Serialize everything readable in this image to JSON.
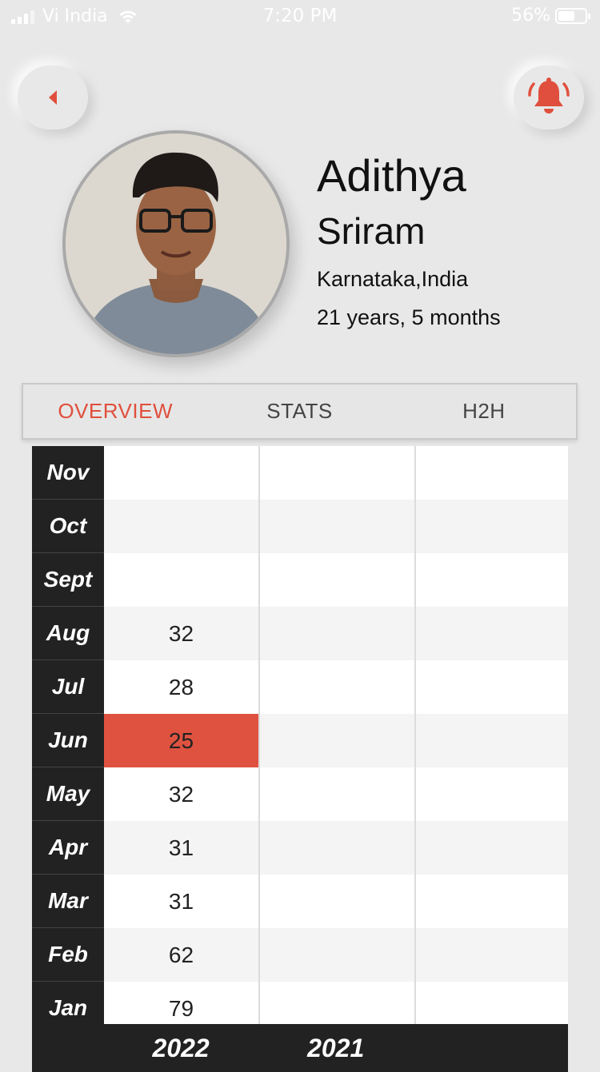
{
  "status_bar": {
    "carrier": "Vi India",
    "time": "7:20 PM",
    "battery": "56%",
    "battery_level": 0.56
  },
  "header": {
    "back_icon": "caret-left-icon",
    "bell_icon": "bell-icon",
    "accent_color": "#e04f3d"
  },
  "profile": {
    "first_name": "Adithya",
    "last_name": "Sriram",
    "location": "Karnataka,India",
    "age": "21 years, 5 months"
  },
  "tabs": [
    {
      "label": "OVERVIEW",
      "active": true
    },
    {
      "label": "STATS",
      "active": false
    },
    {
      "label": "H2H",
      "active": false
    }
  ],
  "table": {
    "rows": [
      {
        "month": "Nov",
        "values": [
          "",
          "",
          ""
        ]
      },
      {
        "month": "Oct",
        "values": [
          "",
          "",
          ""
        ]
      },
      {
        "month": "Sept",
        "values": [
          "",
          "",
          ""
        ]
      },
      {
        "month": "Aug",
        "values": [
          "32",
          "",
          ""
        ]
      },
      {
        "month": "Jul",
        "values": [
          "28",
          "",
          ""
        ]
      },
      {
        "month": "Jun",
        "values": [
          "25",
          "",
          ""
        ],
        "highlight": 0
      },
      {
        "month": "May",
        "values": [
          "32",
          "",
          ""
        ]
      },
      {
        "month": "Apr",
        "values": [
          "31",
          "",
          ""
        ]
      },
      {
        "month": "Mar",
        "values": [
          "31",
          "",
          ""
        ]
      },
      {
        "month": "Feb",
        "values": [
          "62",
          "",
          ""
        ]
      },
      {
        "month": "Jan",
        "values": [
          "79",
          "",
          ""
        ]
      }
    ],
    "years": [
      "2022",
      "2021",
      ""
    ],
    "highlight_color": "#e05240"
  }
}
